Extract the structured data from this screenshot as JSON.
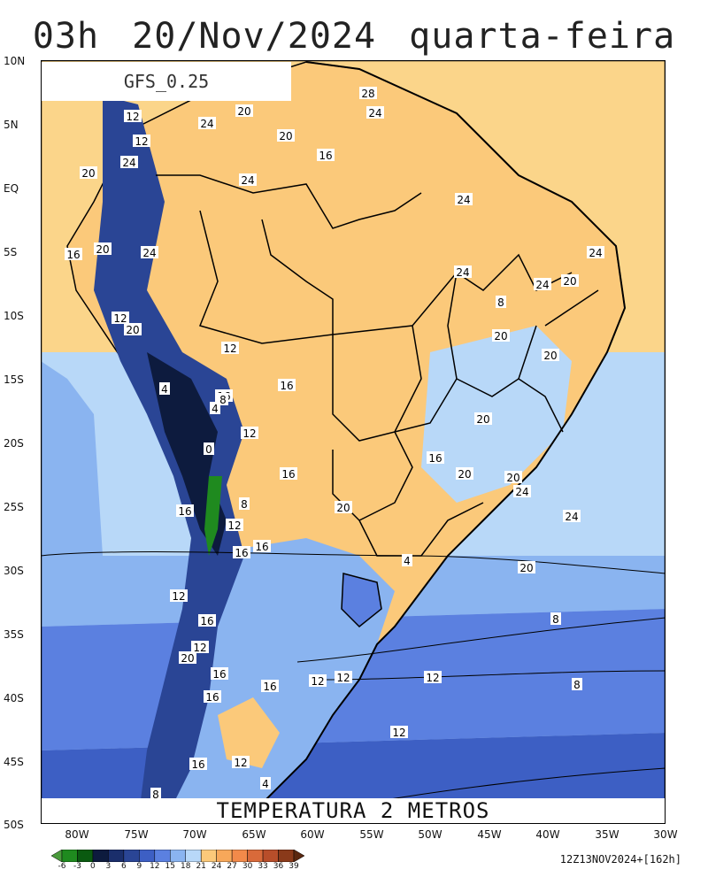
{
  "title": {
    "hour": "03h",
    "date": "20/Nov/2024",
    "weekday": "quarta-feira"
  },
  "model_label": "GFS_0.25",
  "variable_label": "TEMPERATURA 2 METROS",
  "run_label": "12Z13NOV2024+[162h]",
  "map": {
    "lat_labels": [
      "10N",
      "5N",
      "EQ",
      "5S",
      "10S",
      "15S",
      "20S",
      "25S",
      "30S",
      "35S",
      "40S",
      "45S",
      "50S"
    ],
    "lon_labels": [
      "80W",
      "75W",
      "70W",
      "65W",
      "60W",
      "55W",
      "50W",
      "45W",
      "40W",
      "35W",
      "30W"
    ],
    "lat_range": [
      10,
      -50
    ],
    "lon_range": [
      -83,
      -30
    ],
    "contour_labels": [
      "28",
      "24",
      "20",
      "24",
      "12",
      "20",
      "12",
      "16",
      "24",
      "20",
      "24",
      "24",
      "16",
      "20",
      "24",
      "24",
      "24",
      "24",
      "20",
      "8",
      "12",
      "20",
      "20",
      "20",
      "12",
      "4",
      "16",
      "16",
      "8",
      "4",
      "12",
      "0",
      "16",
      "20",
      "16",
      "20",
      "20",
      "24",
      "24",
      "20",
      "8",
      "16",
      "4",
      "12",
      "16",
      "16",
      "20",
      "12",
      "16",
      "8",
      "12",
      "20",
      "16",
      "16",
      "16",
      "12",
      "12",
      "12",
      "8",
      "12",
      "16",
      "12",
      "4",
      "8"
    ]
  },
  "colorbar": {
    "labels": [
      "-6",
      "-3",
      "0",
      "3",
      "6",
      "9",
      "12",
      "15",
      "18",
      "21",
      "24",
      "27",
      "30",
      "33",
      "36",
      "39"
    ],
    "colors": [
      "#4a9a3c",
      "#1f8a1f",
      "#0a5a10",
      "#0d1b3e",
      "#1a2e6b",
      "#2a4595",
      "#3d5fc4",
      "#5b80e0",
      "#8ab4f0",
      "#b8d8f8",
      "#fbc97a",
      "#f7a85a",
      "#f28a4a",
      "#d96a3a",
      "#b84e2a",
      "#8a3a1a",
      "#5a2810"
    ]
  }
}
